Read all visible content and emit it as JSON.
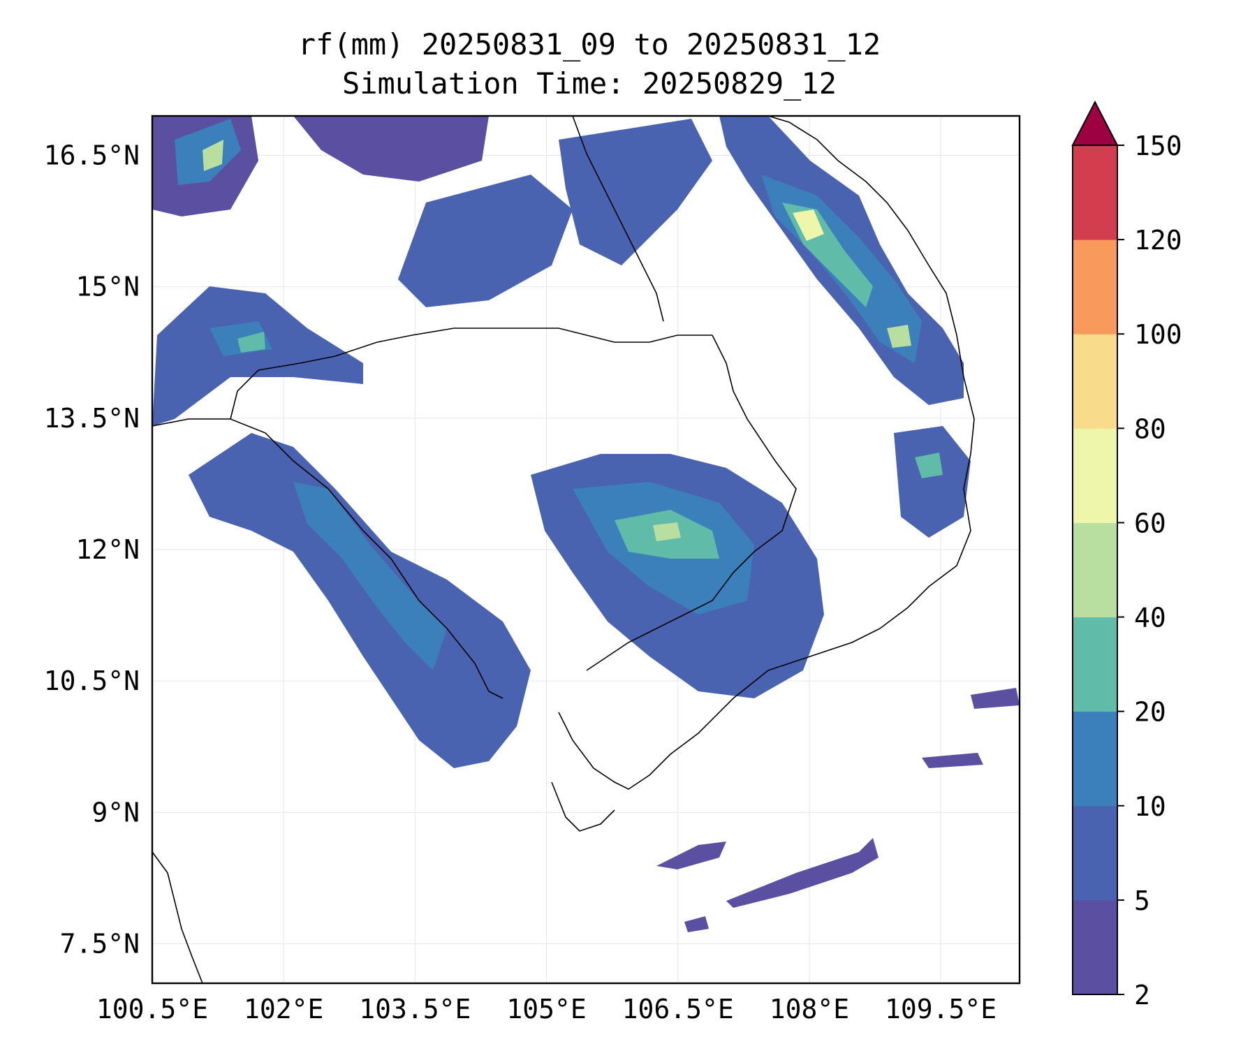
{
  "figure": {
    "title_line1": "rf(mm) 20250831_09 to 20250831_12",
    "title_line2": "Simulation Time: 20250829_12"
  },
  "map": {
    "lon_range": [
      100.5,
      110.4
    ],
    "lat_range": [
      7.05,
      16.95
    ],
    "lon_ticks": [
      "100.5°E",
      "102°E",
      "103.5°E",
      "105°E",
      "106.5°E",
      "108°E",
      "109.5°E"
    ],
    "lat_ticks": [
      "16.5°N",
      "15°N",
      "13.5°N",
      "12°N",
      "10.5°N",
      "9°N",
      "7.5°N"
    ],
    "grid": true,
    "rain_regions": [
      {
        "name": "nw-corner-band",
        "level": "5-10"
      },
      {
        "name": "gulf-of-thailand-coastal-band",
        "level": "10-20"
      },
      {
        "name": "central-cambodia-cluster",
        "level": "20-40"
      },
      {
        "name": "vietnam-central-coast-band",
        "level": "60-80"
      },
      {
        "name": "south-china-sea-streak",
        "level": "2-5"
      }
    ]
  },
  "colorbar": {
    "levels": [
      "2",
      "5",
      "10",
      "20",
      "40",
      "60",
      "80",
      "100",
      "120",
      "150"
    ],
    "colors": [
      "#5a4fa0",
      "#4a63b0",
      "#3b80ba",
      "#60bba8",
      "#b8dea0",
      "#eef6ab",
      "#f8dc8b",
      "#f79a5b",
      "#d33e4f",
      "#9e0142"
    ],
    "extend": "max"
  }
}
